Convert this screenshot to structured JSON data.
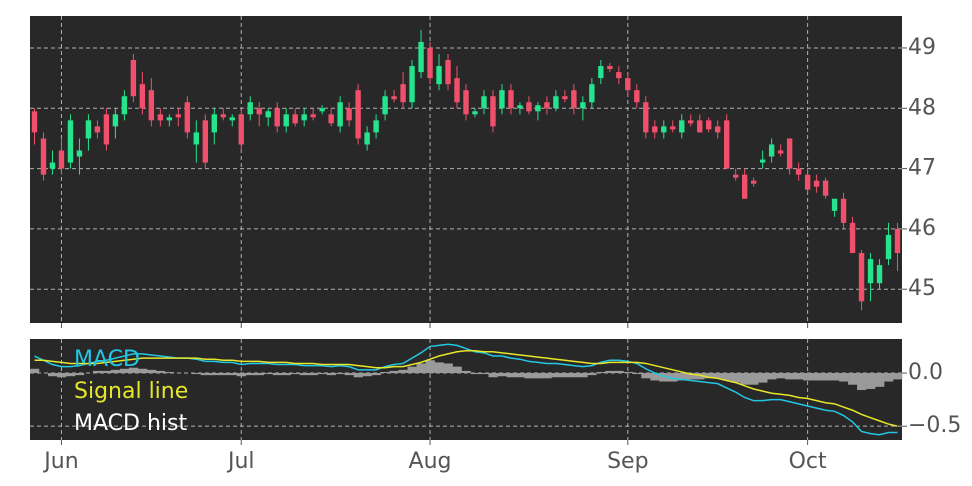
{
  "chart_data": [
    {
      "type": "candlestick",
      "up_color": "#26e38e",
      "down_color": "#f0506c",
      "grid": true,
      "categories": [
        null,
        null,
        null,
        "Jun",
        null,
        null,
        null,
        null,
        null,
        null,
        null,
        null,
        null,
        null,
        null,
        null,
        null,
        null,
        null,
        null,
        null,
        null,
        null,
        "Jul",
        null,
        null,
        null,
        null,
        null,
        null,
        null,
        null,
        null,
        null,
        null,
        null,
        null,
        null,
        null,
        null,
        null,
        null,
        null,
        null,
        "Aug",
        null,
        null,
        null,
        null,
        null,
        null,
        null,
        null,
        null,
        null,
        null,
        null,
        null,
        null,
        null,
        null,
        null,
        null,
        null,
        null,
        null,
        "Sep",
        null,
        null,
        null,
        null,
        null,
        null,
        null,
        null,
        null,
        null,
        null,
        null,
        null,
        null,
        null,
        null,
        null,
        null,
        null,
        "Oct",
        null,
        null,
        null,
        null,
        null,
        null,
        null,
        null,
        null,
        null
      ],
      "open": [
        47.95,
        47.5,
        47.0,
        47.3,
        47.1,
        47.2,
        47.5,
        47.7,
        47.9,
        47.7,
        47.9,
        48.8,
        48.4,
        48.3,
        47.9,
        47.8,
        47.9,
        48.1,
        47.4,
        47.8,
        47.6,
        47.9,
        47.8,
        47.9,
        47.9,
        48.0,
        47.85,
        48.0,
        47.7,
        47.9,
        47.8,
        47.9,
        47.95,
        47.9,
        47.7,
        48.0,
        48.3,
        47.4,
        47.6,
        47.9,
        48.2,
        48.4,
        48.1,
        48.6,
        49.0,
        48.4,
        48.8,
        48.5,
        48.3,
        47.9,
        48.0,
        48.2,
        48.0,
        48.3,
        48.0,
        48.1,
        47.95,
        48.1,
        48.0,
        48.2,
        48.3,
        48.0,
        48.1,
        48.5,
        48.7,
        48.6,
        48.5,
        48.3,
        48.1,
        47.7,
        47.6,
        47.7,
        47.6,
        47.8,
        47.8,
        47.8,
        47.7,
        47.8,
        46.9,
        46.9,
        46.8,
        47.1,
        47.2,
        47.3,
        47.5,
        47.0,
        46.9,
        46.8,
        46.8,
        46.3,
        46.5,
        46.1,
        45.6,
        45.1,
        45.1,
        45.5,
        46.0
      ],
      "high": [
        48.0,
        47.6,
        47.3,
        47.5,
        47.9,
        47.5,
        47.9,
        47.8,
        48.0,
        48.0,
        48.3,
        48.9,
        48.6,
        48.5,
        48.0,
        47.9,
        48.0,
        48.2,
        47.8,
        47.9,
        48.0,
        48.0,
        47.9,
        48.0,
        48.2,
        48.1,
        48.0,
        48.1,
        48.0,
        48.0,
        48.0,
        48.0,
        48.05,
        48.0,
        48.2,
        48.1,
        48.4,
        47.7,
        47.9,
        48.3,
        48.3,
        48.6,
        48.8,
        49.3,
        49.1,
        48.9,
        48.9,
        48.7,
        48.4,
        48.0,
        48.3,
        48.3,
        48.4,
        48.4,
        48.1,
        48.2,
        48.1,
        48.2,
        48.3,
        48.3,
        48.4,
        48.2,
        48.5,
        48.8,
        48.75,
        48.7,
        48.6,
        48.4,
        48.2,
        47.8,
        47.8,
        47.8,
        47.9,
        47.9,
        47.9,
        47.85,
        47.8,
        47.9,
        47.0,
        47.0,
        46.85,
        47.3,
        47.5,
        47.4,
        47.5,
        47.1,
        47.0,
        46.9,
        46.85,
        46.5,
        46.6,
        46.2,
        45.65,
        45.6,
        45.5,
        46.1,
        46.1
      ],
      "low": [
        47.4,
        46.8,
        46.9,
        46.9,
        47.0,
        46.9,
        47.3,
        47.5,
        47.3,
        47.5,
        47.8,
        48.1,
        47.9,
        47.7,
        47.7,
        47.7,
        47.7,
        47.5,
        47.1,
        47.0,
        47.4,
        47.8,
        47.7,
        47.3,
        47.8,
        47.7,
        47.7,
        47.6,
        47.6,
        47.7,
        47.7,
        47.8,
        47.9,
        47.7,
        47.6,
        47.7,
        47.4,
        47.3,
        47.5,
        47.8,
        48.1,
        48.0,
        48.0,
        48.5,
        48.4,
        48.3,
        48.3,
        48.0,
        47.8,
        47.85,
        47.9,
        47.6,
        47.9,
        47.9,
        47.9,
        47.9,
        47.8,
        47.9,
        47.95,
        48.1,
        47.9,
        47.8,
        48.0,
        48.4,
        48.6,
        48.4,
        48.2,
        48.0,
        47.5,
        47.5,
        47.5,
        47.6,
        47.5,
        47.7,
        47.6,
        47.6,
        47.5,
        47.0,
        46.8,
        46.5,
        46.7,
        47.0,
        47.1,
        47.2,
        46.9,
        46.8,
        46.6,
        46.6,
        46.5,
        46.2,
        46.0,
        45.6,
        44.65,
        44.8,
        45.0,
        45.4,
        45.3
      ],
      "close": [
        47.6,
        46.9,
        47.1,
        47.0,
        47.8,
        47.3,
        47.8,
        47.6,
        47.4,
        47.9,
        48.2,
        48.2,
        48.0,
        47.8,
        47.8,
        47.85,
        47.85,
        47.6,
        47.6,
        47.1,
        47.9,
        47.85,
        47.85,
        47.4,
        48.1,
        47.9,
        47.95,
        47.7,
        47.9,
        47.75,
        47.9,
        47.85,
        48.0,
        47.75,
        48.1,
        47.8,
        47.5,
        47.6,
        47.8,
        48.2,
        48.15,
        48.1,
        48.7,
        49.1,
        48.5,
        48.7,
        48.4,
        48.1,
        47.9,
        47.95,
        48.2,
        47.7,
        48.3,
        48.0,
        48.05,
        47.95,
        48.05,
        48.0,
        48.2,
        48.15,
        48.0,
        48.1,
        48.4,
        48.7,
        48.65,
        48.5,
        48.3,
        48.1,
        47.6,
        47.6,
        47.7,
        47.65,
        47.8,
        47.75,
        47.6,
        47.65,
        47.6,
        47.0,
        46.85,
        46.5,
        46.75,
        47.15,
        47.4,
        47.25,
        47.0,
        46.9,
        46.65,
        46.7,
        46.55,
        46.5,
        46.1,
        45.6,
        44.8,
        45.5,
        45.4,
        45.9,
        45.6
      ],
      "ylim": [
        44.44,
        49.53
      ],
      "yticks": [
        45,
        46,
        47,
        48,
        49
      ]
    },
    {
      "type": "line",
      "grid": true,
      "legend": "upper left",
      "categories": [
        null,
        null,
        null,
        "Jun",
        null,
        null,
        null,
        null,
        null,
        null,
        null,
        null,
        null,
        null,
        null,
        null,
        null,
        null,
        null,
        null,
        null,
        null,
        null,
        "Jul",
        null,
        null,
        null,
        null,
        null,
        null,
        null,
        null,
        null,
        null,
        null,
        null,
        null,
        null,
        null,
        null,
        null,
        null,
        null,
        null,
        "Aug",
        null,
        null,
        null,
        null,
        null,
        null,
        null,
        null,
        null,
        null,
        null,
        null,
        null,
        null,
        null,
        null,
        null,
        null,
        null,
        null,
        null,
        "Sep",
        null,
        null,
        null,
        null,
        null,
        null,
        null,
        null,
        null,
        null,
        null,
        null,
        null,
        null,
        null,
        null,
        null,
        null,
        null,
        "Oct",
        null,
        null,
        null,
        null,
        null,
        null,
        null,
        null,
        null,
        null
      ],
      "series": [
        {
          "name": "MACD",
          "color": "#22c7e3",
          "values": [
            0.16,
            0.12,
            0.08,
            0.06,
            0.06,
            0.07,
            0.09,
            0.11,
            0.12,
            0.14,
            0.16,
            0.18,
            0.18,
            0.17,
            0.16,
            0.15,
            0.14,
            0.14,
            0.13,
            0.11,
            0.11,
            0.1,
            0.1,
            0.08,
            0.09,
            0.09,
            0.09,
            0.08,
            0.08,
            0.08,
            0.07,
            0.07,
            0.07,
            0.06,
            0.07,
            0.06,
            0.03,
            0.03,
            0.03,
            0.06,
            0.08,
            0.09,
            0.14,
            0.19,
            0.25,
            0.26,
            0.27,
            0.26,
            0.23,
            0.2,
            0.19,
            0.16,
            0.16,
            0.14,
            0.13,
            0.11,
            0.1,
            0.09,
            0.09,
            0.08,
            0.07,
            0.06,
            0.07,
            0.1,
            0.12,
            0.12,
            0.11,
            0.09,
            0.04,
            0.0,
            -0.03,
            -0.05,
            -0.06,
            -0.07,
            -0.08,
            -0.09,
            -0.1,
            -0.14,
            -0.18,
            -0.23,
            -0.26,
            -0.26,
            -0.25,
            -0.25,
            -0.27,
            -0.29,
            -0.31,
            -0.33,
            -0.35,
            -0.36,
            -0.4,
            -0.46,
            -0.55,
            -0.57,
            -0.58,
            -0.56,
            -0.56
          ]
        },
        {
          "name": "Signal line",
          "color": "#e6e62a",
          "values": [
            0.12,
            0.12,
            0.11,
            0.1,
            0.09,
            0.09,
            0.09,
            0.09,
            0.1,
            0.11,
            0.12,
            0.13,
            0.14,
            0.14,
            0.14,
            0.14,
            0.14,
            0.14,
            0.14,
            0.13,
            0.13,
            0.12,
            0.12,
            0.11,
            0.11,
            0.11,
            0.1,
            0.1,
            0.1,
            0.09,
            0.09,
            0.09,
            0.08,
            0.08,
            0.08,
            0.08,
            0.07,
            0.06,
            0.05,
            0.05,
            0.06,
            0.06,
            0.08,
            0.1,
            0.13,
            0.16,
            0.18,
            0.2,
            0.21,
            0.21,
            0.2,
            0.2,
            0.19,
            0.18,
            0.17,
            0.16,
            0.15,
            0.14,
            0.13,
            0.12,
            0.11,
            0.1,
            0.09,
            0.09,
            0.1,
            0.1,
            0.1,
            0.1,
            0.09,
            0.07,
            0.05,
            0.03,
            0.01,
            -0.01,
            -0.02,
            -0.04,
            -0.05,
            -0.07,
            -0.09,
            -0.12,
            -0.15,
            -0.17,
            -0.19,
            -0.2,
            -0.21,
            -0.23,
            -0.24,
            -0.26,
            -0.28,
            -0.29,
            -0.32,
            -0.35,
            -0.39,
            -0.42,
            -0.45,
            -0.48,
            -0.5
          ]
        },
        {
          "name": "MACD hist",
          "color": "#9a9a9a",
          "legend_color": "#ffffff",
          "type": "bar",
          "values": [
            0.04,
            0.0,
            -0.03,
            -0.04,
            -0.03,
            -0.02,
            0.0,
            0.02,
            0.02,
            0.03,
            0.04,
            0.05,
            0.04,
            0.03,
            0.02,
            0.01,
            0.0,
            0.0,
            -0.01,
            -0.02,
            -0.02,
            -0.02,
            -0.02,
            -0.03,
            -0.02,
            -0.02,
            -0.01,
            -0.02,
            -0.02,
            -0.01,
            -0.02,
            -0.02,
            -0.01,
            -0.02,
            -0.01,
            -0.02,
            -0.04,
            -0.03,
            -0.02,
            0.01,
            0.02,
            0.03,
            0.06,
            0.09,
            0.12,
            0.1,
            0.09,
            0.06,
            0.02,
            -0.01,
            -0.01,
            -0.04,
            -0.03,
            -0.04,
            -0.04,
            -0.05,
            -0.05,
            -0.05,
            -0.04,
            -0.04,
            -0.04,
            -0.04,
            -0.02,
            0.01,
            0.02,
            0.02,
            0.01,
            -0.01,
            -0.05,
            -0.07,
            -0.08,
            -0.08,
            -0.07,
            -0.06,
            -0.06,
            -0.05,
            -0.05,
            -0.07,
            -0.09,
            -0.11,
            -0.11,
            -0.09,
            -0.06,
            -0.05,
            -0.06,
            -0.06,
            -0.07,
            -0.07,
            -0.07,
            -0.07,
            -0.08,
            -0.11,
            -0.16,
            -0.15,
            -0.13,
            -0.08,
            -0.06
          ]
        }
      ],
      "ylim": [
        -0.63,
        0.32
      ],
      "yticks": [
        {
          "value": -0.5,
          "label": "−0.5"
        },
        {
          "value": 0,
          "label": "0.0"
        }
      ]
    }
  ]
}
